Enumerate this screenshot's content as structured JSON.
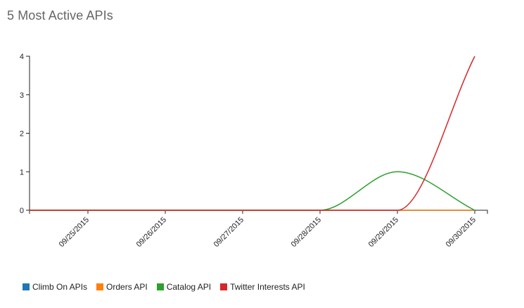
{
  "title": "5 Most Active APIs",
  "chart_data": {
    "type": "line",
    "title": "5 Most Active APIs",
    "xlabel": "",
    "ylabel": "",
    "x": [
      "09/25/2015",
      "09/26/2015",
      "09/27/2015",
      "09/28/2015",
      "09/29/2015",
      "09/30/2015"
    ],
    "x_range": [
      "09/24/2015",
      "09/30/2015"
    ],
    "ylim": [
      0,
      4
    ],
    "yticks": [
      0,
      1,
      2,
      3,
      4
    ],
    "grid": false,
    "legend_position": "bottom-left",
    "series": [
      {
        "name": "Climb On APIs",
        "color": "#1f77b4",
        "values": [
          0,
          0,
          0,
          0,
          0,
          0
        ]
      },
      {
        "name": "Orders API",
        "color": "#ff7f0e",
        "values": [
          0,
          0,
          0,
          0,
          0,
          0
        ]
      },
      {
        "name": "Catalog API",
        "color": "#2ca02c",
        "values": [
          0,
          0,
          0,
          0,
          1,
          0
        ]
      },
      {
        "name": "Twitter Interests API",
        "color": "#d62728",
        "values": [
          0,
          0,
          0,
          0,
          0,
          4
        ]
      }
    ]
  }
}
